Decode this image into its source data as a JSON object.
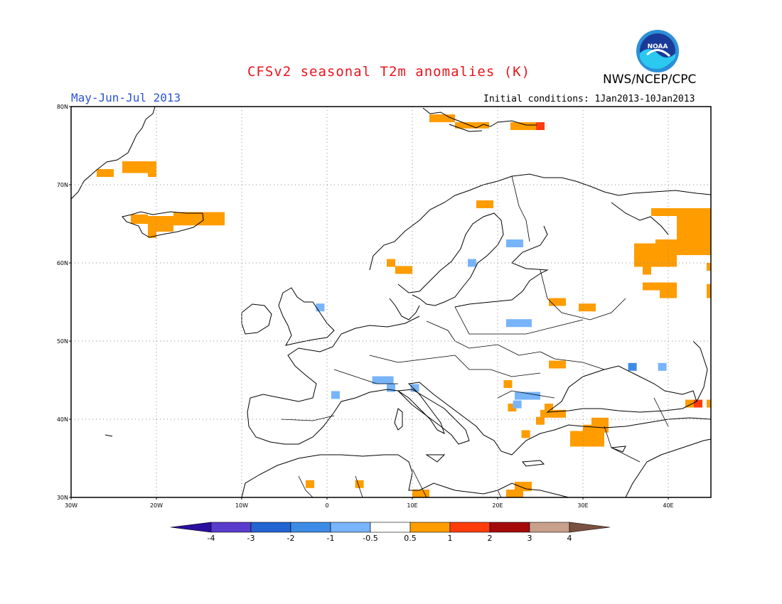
{
  "header": {
    "title": "CFSv2 seasonal T2m anomalies (K)",
    "agency": "NWS/NCEP/CPC",
    "logo_text": "NOAA",
    "period": "May-Jun-Jul 2013",
    "initial_conditions": "Initial conditions: 1Jan2013-10Jan2013"
  },
  "map": {
    "region": "Europe",
    "lon_range": [
      -30,
      45
    ],
    "lat_range": [
      30,
      80
    ],
    "gridlines": "dotted",
    "lat_labels": [
      "80N",
      "70N",
      "60N",
      "50N",
      "40N",
      "30N"
    ],
    "lon_labels": [
      "30W",
      "20W",
      "10W",
      "0",
      "10E",
      "20E",
      "30E",
      "40E"
    ],
    "anomaly_cells": [
      {
        "lon": -24,
        "lat": 71.5,
        "lon_w": 4,
        "lat_h": 1.5,
        "color": "#ff9c00"
      },
      {
        "lon": -27,
        "lat": 71,
        "lon_w": 2,
        "lat_h": 1,
        "color": "#ff9c00"
      },
      {
        "lon": -21,
        "lat": 71,
        "lon_w": 1,
        "lat_h": 1,
        "color": "#ff9c00"
      },
      {
        "lon": -23,
        "lat": 65,
        "lon_w": 2,
        "lat_h": 1.2,
        "color": "#ff9c00"
      },
      {
        "lon": -21,
        "lat": 64,
        "lon_w": 3,
        "lat_h": 2,
        "color": "#ff9c00"
      },
      {
        "lon": -18,
        "lat": 64.8,
        "lon_w": 6,
        "lat_h": 1.7,
        "color": "#ff9c00"
      },
      {
        "lon": -21,
        "lat": 63.2,
        "lon_w": 1,
        "lat_h": 1,
        "color": "#ff9c00"
      },
      {
        "lon": 12,
        "lat": 78,
        "lon_w": 3,
        "lat_h": 1,
        "color": "#ff9c00"
      },
      {
        "lon": 15,
        "lat": 77.2,
        "lon_w": 4,
        "lat_h": 0.8,
        "color": "#ff9c00"
      },
      {
        "lon": 21.5,
        "lat": 77,
        "lon_w": 3,
        "lat_h": 1,
        "color": "#ff9c00"
      },
      {
        "lon": 24.5,
        "lat": 77,
        "lon_w": 1,
        "lat_h": 1,
        "color": "#ff3c0a"
      },
      {
        "lon": 17.5,
        "lat": 67,
        "lon_w": 2,
        "lat_h": 1,
        "color": "#ff9c00"
      },
      {
        "lon": 38,
        "lat": 66,
        "lon_w": 5,
        "lat_h": 1,
        "color": "#ff9c00"
      },
      {
        "lon": 41,
        "lat": 61,
        "lon_w": 4,
        "lat_h": 6,
        "color": "#ff9c00"
      },
      {
        "lon": 36,
        "lat": 59.5,
        "lon_w": 5,
        "lat_h": 3,
        "color": "#ff9c00"
      },
      {
        "lon": 38.5,
        "lat": 62,
        "lon_w": 2.5,
        "lat_h": 1,
        "color": "#ff9c00"
      },
      {
        "lon": 44.5,
        "lat": 59,
        "lon_w": 0.5,
        "lat_h": 1,
        "color": "#ff9c00"
      },
      {
        "lon": 37,
        "lat": 58.5,
        "lon_w": 1,
        "lat_h": 1,
        "color": "#ff9c00"
      },
      {
        "lon": 37,
        "lat": 56.5,
        "lon_w": 4,
        "lat_h": 1,
        "color": "#ff9c00"
      },
      {
        "lon": 39,
        "lat": 55.5,
        "lon_w": 2,
        "lat_h": 1.5,
        "color": "#ff9c00"
      },
      {
        "lon": 44.5,
        "lat": 55.5,
        "lon_w": 0.5,
        "lat_h": 1.8,
        "color": "#ff9c00"
      },
      {
        "lon": 7,
        "lat": 59.5,
        "lon_w": 1,
        "lat_h": 1,
        "color": "#ff9c00"
      },
      {
        "lon": 8,
        "lat": 58.6,
        "lon_w": 2,
        "lat_h": 1,
        "color": "#ff9c00"
      },
      {
        "lon": 26,
        "lat": 54.5,
        "lon_w": 2,
        "lat_h": 1,
        "color": "#ff9c00"
      },
      {
        "lon": 29.5,
        "lat": 53.8,
        "lon_w": 2,
        "lat_h": 1,
        "color": "#ff9c00"
      },
      {
        "lon": 26,
        "lat": 46.5,
        "lon_w": 2,
        "lat_h": 1,
        "color": "#ff9c00"
      },
      {
        "lon": 20.7,
        "lat": 44,
        "lon_w": 1,
        "lat_h": 1,
        "color": "#ff9c00"
      },
      {
        "lon": 21.2,
        "lat": 41,
        "lon_w": 1,
        "lat_h": 1,
        "color": "#ff9c00"
      },
      {
        "lon": 25.5,
        "lat": 41,
        "lon_w": 1,
        "lat_h": 1,
        "color": "#ff9c00"
      },
      {
        "lon": 25,
        "lat": 40.2,
        "lon_w": 3,
        "lat_h": 1,
        "color": "#ff9c00"
      },
      {
        "lon": 24.5,
        "lat": 39.3,
        "lon_w": 1,
        "lat_h": 1,
        "color": "#ff9c00"
      },
      {
        "lon": 22.8,
        "lat": 37.6,
        "lon_w": 1,
        "lat_h": 1,
        "color": "#ff9c00"
      },
      {
        "lon": 28.5,
        "lat": 36.5,
        "lon_w": 4,
        "lat_h": 2,
        "color": "#ff9c00"
      },
      {
        "lon": 30,
        "lat": 38.3,
        "lon_w": 3,
        "lat_h": 1,
        "color": "#ff9c00"
      },
      {
        "lon": 31,
        "lat": 39.2,
        "lon_w": 2,
        "lat_h": 1,
        "color": "#ff9c00"
      },
      {
        "lon": 42,
        "lat": 41.5,
        "lon_w": 1,
        "lat_h": 1,
        "color": "#ff9c00"
      },
      {
        "lon": 43,
        "lat": 41.5,
        "lon_w": 1,
        "lat_h": 1,
        "color": "#ff3c0a"
      },
      {
        "lon": 44.5,
        "lat": 41.5,
        "lon_w": 0.5,
        "lat_h": 1,
        "color": "#ff9c00"
      },
      {
        "lon": -2.5,
        "lat": 31.2,
        "lon_w": 1,
        "lat_h": 1,
        "color": "#ff9c00"
      },
      {
        "lon": 3.3,
        "lat": 31.2,
        "lon_w": 1,
        "lat_h": 1,
        "color": "#ff9c00"
      },
      {
        "lon": 10,
        "lat": 30,
        "lon_w": 2,
        "lat_h": 1,
        "color": "#ff9c00"
      },
      {
        "lon": 21,
        "lat": 30,
        "lon_w": 2,
        "lat_h": 1,
        "color": "#ff9c00"
      },
      {
        "lon": 22,
        "lat": 30.8,
        "lon_w": 2,
        "lat_h": 1.2,
        "color": "#ff9c00"
      },
      {
        "lon": 21,
        "lat": 62,
        "lon_w": 2,
        "lat_h": 1,
        "color": "#78b4fa"
      },
      {
        "lon": 16.5,
        "lat": 59.5,
        "lon_w": 1,
        "lat_h": 1,
        "color": "#78b4fa"
      },
      {
        "lon": -1.3,
        "lat": 53.8,
        "lon_w": 1,
        "lat_h": 1,
        "color": "#78b4fa"
      },
      {
        "lon": 21,
        "lat": 51.8,
        "lon_w": 3,
        "lat_h": 1,
        "color": "#78b4fa"
      },
      {
        "lon": 5.3,
        "lat": 44.5,
        "lon_w": 2.5,
        "lat_h": 1,
        "color": "#78b4fa"
      },
      {
        "lon": 7,
        "lat": 43.5,
        "lon_w": 1,
        "lat_h": 1,
        "color": "#78b4fa"
      },
      {
        "lon": 9.8,
        "lat": 43.5,
        "lon_w": 1,
        "lat_h": 1,
        "color": "#78b4fa"
      },
      {
        "lon": 0.5,
        "lat": 42.6,
        "lon_w": 1,
        "lat_h": 1,
        "color": "#78b4fa"
      },
      {
        "lon": 22,
        "lat": 42.5,
        "lon_w": 3,
        "lat_h": 1,
        "color": "#78b4fa"
      },
      {
        "lon": 21.8,
        "lat": 41.4,
        "lon_w": 1,
        "lat_h": 1,
        "color": "#78b4fa"
      },
      {
        "lon": 35.3,
        "lat": 46.2,
        "lon_w": 1,
        "lat_h": 1,
        "color": "#3c8ce6"
      },
      {
        "lon": 38.8,
        "lat": 46.2,
        "lon_w": 1,
        "lat_h": 1,
        "color": "#78b4fa"
      }
    ]
  },
  "legend": {
    "bins": [
      {
        "color": "#5a3ccc"
      },
      {
        "color": "#2164d2"
      },
      {
        "color": "#3c8ce6"
      },
      {
        "color": "#78b4fa"
      },
      {
        "color": "#ffffff"
      },
      {
        "color": "#ff9c00"
      },
      {
        "color": "#ff3c0a"
      },
      {
        "color": "#a50a0a"
      },
      {
        "color": "#c8a08c"
      }
    ],
    "low_cap_color": "#2a0ea0",
    "high_cap_color": "#7a5040",
    "labels": [
      "-4",
      "-3",
      "-2",
      "-1",
      "-0.5",
      "0.5",
      "1",
      "2",
      "3",
      "4"
    ]
  }
}
